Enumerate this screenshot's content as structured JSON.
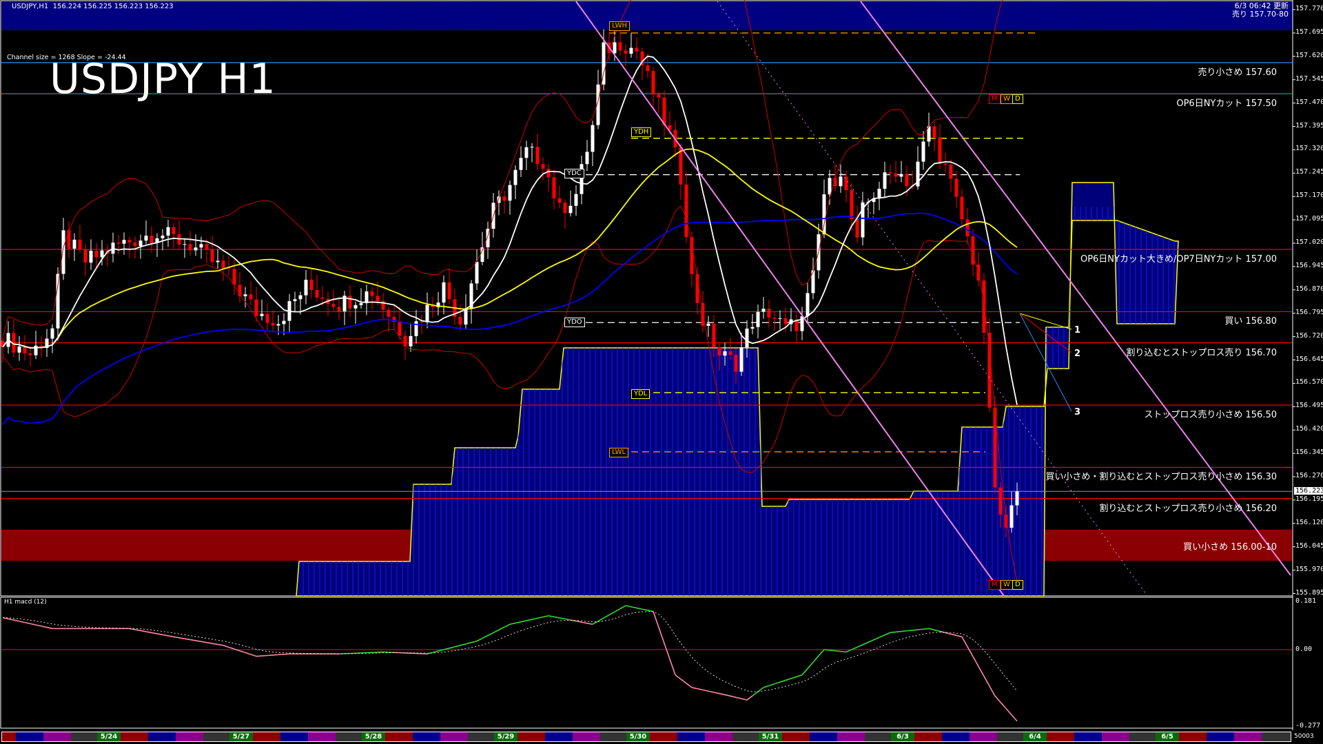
{
  "window": {
    "symbol_info": "USDJPY,H1  156.224 156.225 156.223 156.223",
    "updated": "6/3 06:42 更新",
    "banner_text": "売り 157.70-80",
    "channel_info": "Channel size = 1268 Slope = -24.44",
    "title": "USDJPY H1",
    "current_price": "156.223",
    "macd_label": "H1 macd (12)",
    "footer_value": "50003"
  },
  "levels": [
    {
      "price": 157.6,
      "label": "売り小さめ 157.60",
      "color": "#3a8ee6"
    },
    {
      "price": 157.5,
      "label": "OP6日NYカット 157.50",
      "color": "#3a8ee6"
    },
    {
      "price": 157.0,
      "label": "OP6日NYカット大きめ/OP7日NYカット 157.00",
      "color": "#ff0000"
    },
    {
      "price": 156.8,
      "label": "買い 156.80",
      "color": "#ff0000"
    },
    {
      "price": 156.7,
      "label": "割り込むとストップロス売り 156.70",
      "color": "#ff0000"
    },
    {
      "price": 156.5,
      "label": "ストップロス売り小さめ 156.50",
      "color": "#ff0000"
    },
    {
      "price": 156.3,
      "label": "買い小さめ・割り込むとストップロス売り小さめ 156.30",
      "color": "#ff0000"
    },
    {
      "price": 156.2,
      "label": "割り込むとストップロス売り小さめ 156.20",
      "color": "#ff0000"
    }
  ],
  "zone": {
    "low": 156.0,
    "high": 156.1,
    "label": "買い小さめ 156.00-10",
    "color": "#8b0000"
  },
  "markers": {
    "lwh": "LWH",
    "ydh": "YDH",
    "ydc": "YDC",
    "ydo": "YDO",
    "ydl": "YDL",
    "lwl": "LWL",
    "m": "M",
    "w": "W",
    "d": "D",
    "line1": "1",
    "line2": "2",
    "line3": "3"
  },
  "price_axis": [
    "157.770",
    "157.695",
    "157.620",
    "157.545",
    "157.470",
    "157.395",
    "157.320",
    "157.245",
    "157.170",
    "157.095",
    "157.020",
    "156.945",
    "156.870",
    "156.795",
    "156.720",
    "156.645",
    "156.570",
    "156.495",
    "156.420",
    "156.345",
    "156.270",
    "156.195",
    "156.120",
    "156.045",
    "155.970",
    "155.895"
  ],
  "macd_axis": {
    "max": "0.181",
    "zero": "0.00",
    "min": "-0.277"
  },
  "dates": [
    "5/24",
    "5/27",
    "5/28",
    "5/29",
    "5/30",
    "5/31",
    "6/3",
    "6/4",
    "6/5"
  ],
  "chart_data": {
    "type": "candlestick",
    "symbol": "USDJPY",
    "timeframe": "H1",
    "ylim": [
      155.895,
      157.77
    ],
    "close_path": [
      [
        0,
        156.717
      ],
      [
        5,
        156.663
      ],
      [
        9,
        156.744
      ],
      [
        11,
        157.042
      ],
      [
        15,
        156.961
      ],
      [
        21,
        157.015
      ],
      [
        28,
        157.056
      ],
      [
        34,
        157.015
      ],
      [
        40,
        156.934
      ],
      [
        46,
        156.799
      ],
      [
        50,
        156.772
      ],
      [
        55,
        156.88
      ],
      [
        61,
        156.826
      ],
      [
        67,
        156.866
      ],
      [
        73,
        156.717
      ],
      [
        80,
        156.88
      ],
      [
        83,
        156.772
      ],
      [
        86,
        156.961
      ],
      [
        89,
        157.124
      ],
      [
        92,
        157.205
      ],
      [
        95,
        157.313
      ],
      [
        98,
        157.286
      ],
      [
        101,
        157.124
      ],
      [
        104,
        157.178
      ],
      [
        107,
        157.395
      ],
      [
        109,
        157.638
      ],
      [
        112,
        157.666
      ],
      [
        115,
        157.638
      ],
      [
        118,
        157.503
      ],
      [
        121,
        157.368
      ],
      [
        123,
        157.232
      ],
      [
        125,
        156.907
      ],
      [
        127,
        156.772
      ],
      [
        130,
        156.663
      ],
      [
        133,
        156.636
      ],
      [
        136,
        156.772
      ],
      [
        139,
        156.799
      ],
      [
        142,
        156.744
      ],
      [
        145,
        156.772
      ],
      [
        147,
        156.907
      ],
      [
        149,
        157.178
      ],
      [
        152,
        157.259
      ],
      [
        155,
        157.015
      ],
      [
        156,
        157.124
      ],
      [
        159,
        157.205
      ],
      [
        162,
        157.259
      ],
      [
        165,
        157.205
      ],
      [
        168,
        157.395
      ],
      [
        171,
        157.259
      ],
      [
        174,
        157.097
      ],
      [
        177,
        156.907
      ],
      [
        179,
        156.501
      ],
      [
        180,
        156.207
      ],
      [
        182,
        156.094
      ],
      [
        184,
        156.223
      ]
    ],
    "key_levels": {
      "LWH": 157.695,
      "YDH": 157.357,
      "YDC": 157.24,
      "YDO": 156.765,
      "YDL": 156.54,
      "LWL": 156.35
    },
    "macd": {
      "ylim": [
        -0.277,
        0.181
      ],
      "main": [
        [
          0,
          0.12
        ],
        [
          9,
          0.079
        ],
        [
          23,
          0.079
        ],
        [
          31,
          0.048
        ],
        [
          40,
          0.016
        ],
        [
          46,
          -0.025
        ],
        [
          52,
          -0.016
        ],
        [
          61,
          -0.016
        ],
        [
          69,
          -0.009
        ],
        [
          77,
          -0.016
        ],
        [
          86,
          0.032
        ],
        [
          92,
          0.095
        ],
        [
          99,
          0.127
        ],
        [
          107,
          0.095
        ],
        [
          113,
          0.165
        ],
        [
          118,
          0.143
        ],
        [
          122,
          -0.095
        ],
        [
          125,
          -0.142
        ],
        [
          132,
          -0.174
        ],
        [
          135,
          -0.189
        ],
        [
          138,
          -0.142
        ],
        [
          145,
          -0.095
        ],
        [
          149,
          0.0
        ],
        [
          153,
          -0.009
        ],
        [
          161,
          0.064
        ],
        [
          168,
          0.079
        ],
        [
          174,
          0.048
        ],
        [
          177,
          -0.063
        ],
        [
          180,
          -0.174
        ],
        [
          184,
          -0.268
        ]
      ]
    }
  }
}
